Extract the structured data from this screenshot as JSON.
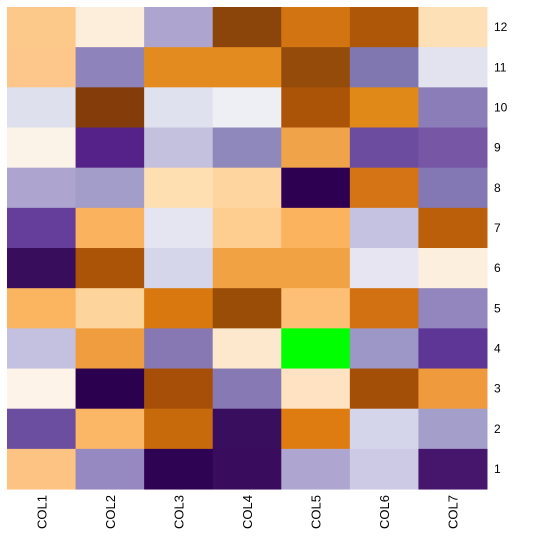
{
  "chart_data": {
    "type": "heatmap",
    "columns": [
      "COL1",
      "COL2",
      "COL3",
      "COL4",
      "COL5",
      "COL6",
      "COL7"
    ],
    "rows": [
      "12",
      "11",
      "10",
      "9",
      "8",
      "7",
      "6",
      "5",
      "4",
      "3",
      "2",
      "1"
    ],
    "cell_colors": [
      [
        "#FCC98A",
        "#FCEEDA",
        "#ADA5CF",
        "#8B4409",
        "#D37412",
        "#AF5709",
        "#FEE0B6"
      ],
      [
        "#FDC78B",
        "#8F83BB",
        "#E38B1F",
        "#E38B1F",
        "#954B09",
        "#8077B0",
        "#E3E3F0"
      ],
      [
        "#DEE0EE",
        "#843D0A",
        "#E0E1EF",
        "#EEEEF5",
        "#AB5408",
        "#E08818",
        "#8B7EB8"
      ],
      [
        "#FCF3E8",
        "#542288",
        "#C3C1DE",
        "#8F88BC",
        "#F1A34A",
        "#6C4C9F",
        "#7756A6"
      ],
      [
        "#ADA4CF",
        "#A29DC9",
        "#FEDFB2",
        "#FED59F",
        "#2E0051",
        "#D47414",
        "#8378B3"
      ],
      [
        "#653D9B",
        "#FBB25E",
        "#E5E4F1",
        "#FECD90",
        "#FBB35E",
        "#C4C2E0",
        "#BB5F0A"
      ],
      [
        "#380D5C",
        "#AB5408",
        "#D6D6EA",
        "#F1A242",
        "#F1A242",
        "#E6E5F1",
        "#FDEFDD"
      ],
      [
        "#FBB45F",
        "#FED49D",
        "#D9780F",
        "#994D07",
        "#FDBF76",
        "#D27112",
        "#9386BF"
      ],
      [
        "#C3C1DF",
        "#EF9D3E",
        "#8778B3",
        "#FEE8CD",
        "#00FF00",
        "#9C97C6",
        "#5E3695"
      ],
      [
        "#FDF3E8",
        "#2B004E",
        "#A74F08",
        "#8779B3",
        "#FEE2C1",
        "#A34F08",
        "#EF9A3C"
      ],
      [
        "#6B4EA0",
        "#FBB765",
        "#C76A0C",
        "#3A0E5F",
        "#DE7C11",
        "#D4D5EA",
        "#A49FCA"
      ],
      [
        "#FDC383",
        "#9688C1",
        "#2E0353",
        "#3A0C5D",
        "#AEA6D0",
        "#CCCAE4",
        "#46166D"
      ]
    ],
    "highlight": {
      "row": "4",
      "column": "COL5",
      "color": "#00FF00"
    },
    "legend": "none",
    "grid": false
  }
}
